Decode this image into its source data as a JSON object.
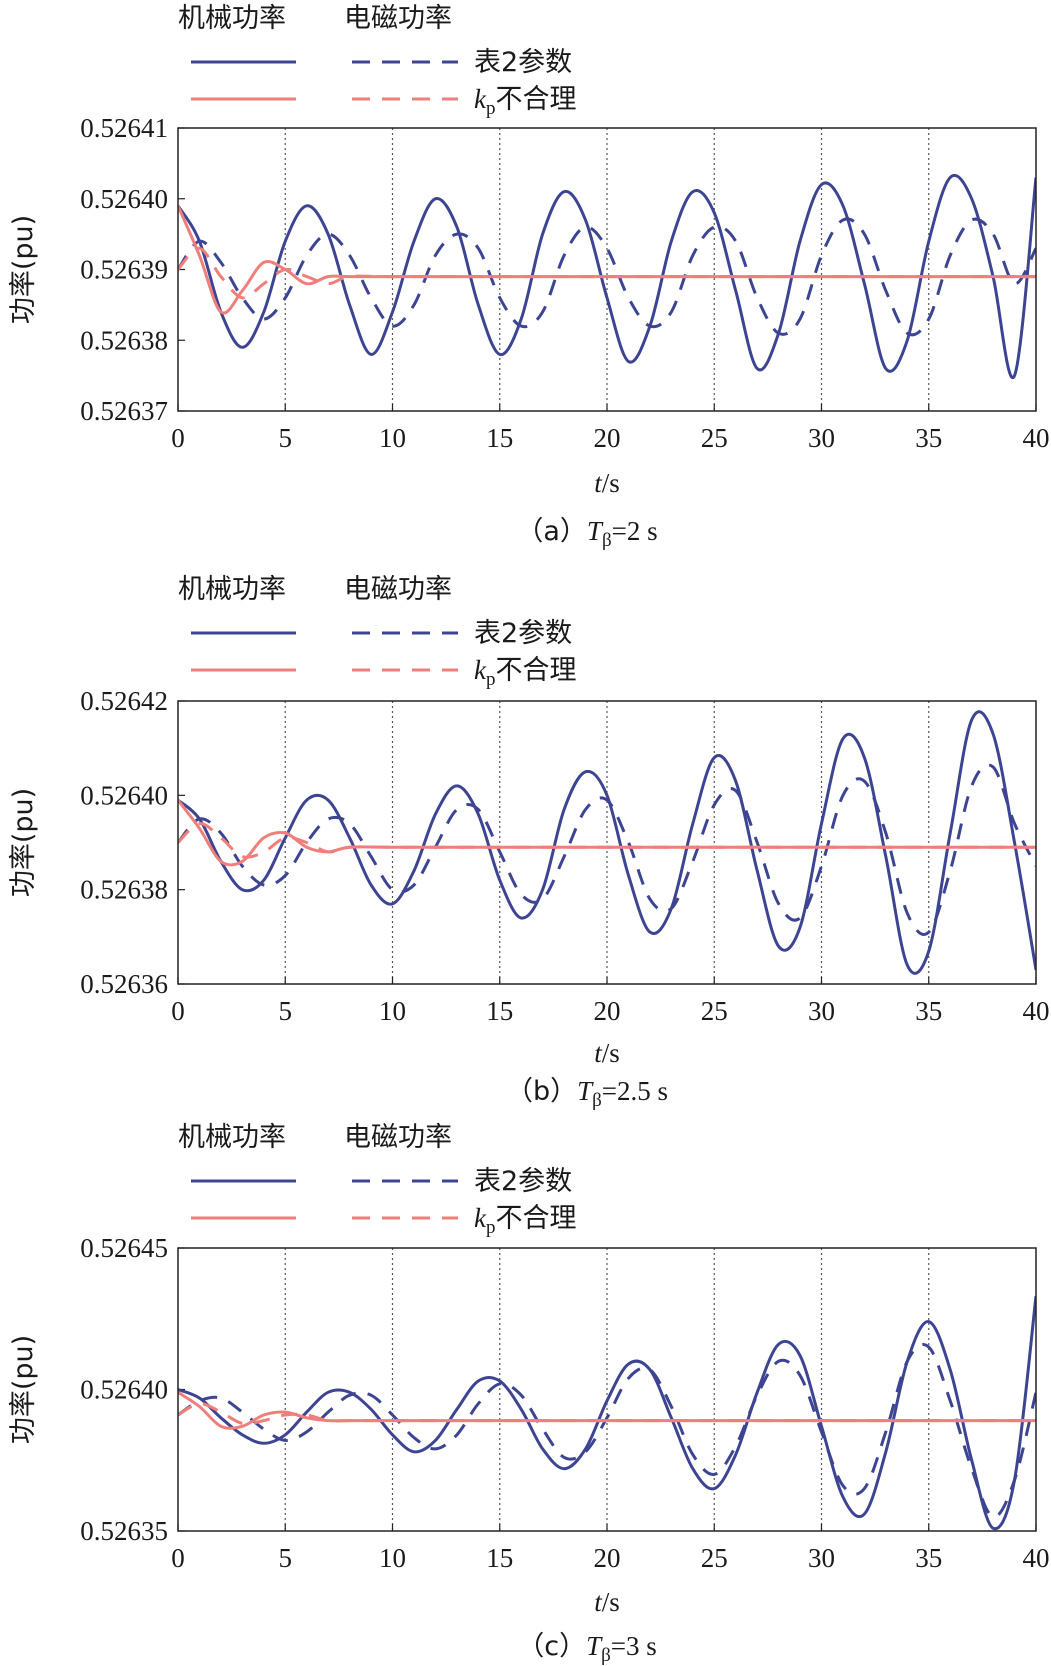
{
  "legend": {
    "col1_header": "机械功率",
    "col2_header": "电磁功率",
    "row1_label": "表2参数",
    "row2_label_k": "k",
    "row2_label_sub": "p",
    "row2_label_rest": "不合理"
  },
  "colors": {
    "table2": "#3d4592",
    "kp_bad": "#ef7f7a"
  },
  "panels": [
    {
      "caption_prefix": "（a）",
      "caption_T": "T",
      "caption_sub": "β",
      "caption_value": "=2 s",
      "xlabel_italic": "t",
      "xlabel_unit": "/s",
      "ylabel": "功率(pu)",
      "chart_data": {
        "type": "line",
        "xlim": [
          0,
          40
        ],
        "ylim": [
          0.52637,
          0.52641
        ],
        "x_ticks": [
          "0",
          "5",
          "10",
          "15",
          "20",
          "25",
          "30",
          "35",
          "40"
        ],
        "y_ticks": [
          "0.52637",
          "0.52638",
          "0.52639",
          "0.52640",
          "0.52641"
        ],
        "grid": "x-dotted",
        "series": [
          {
            "name": "机械功率 表2参数",
            "color": "table2",
            "dash": "solid",
            "x": [
              0,
              1,
              2,
              3,
              4,
              5,
              6,
              7,
              8,
              9,
              10,
              11,
              12,
              13,
              14,
              15,
              16,
              17,
              18,
              19,
              20,
              21,
              22,
              23,
              24,
              25,
              26,
              27,
              28,
              29,
              30,
              31,
              32,
              33,
              34,
              35,
              36,
              37,
              38,
              39,
              40
            ],
            "y": [
              0.526399,
              0.526394,
              0.526384,
              0.526379,
              0.526384,
              0.526394,
              0.526399,
              0.526395,
              0.526385,
              0.526378,
              0.526384,
              0.526394,
              0.5264,
              0.526396,
              0.526385,
              0.526378,
              0.526383,
              0.526395,
              0.526401,
              0.526397,
              0.526386,
              0.526377,
              0.526382,
              0.526394,
              0.526401,
              0.526398,
              0.526387,
              0.526376,
              0.526381,
              0.526394,
              0.526402,
              0.526399,
              0.526388,
              0.526376,
              0.52638,
              0.526394,
              0.526403,
              0.5264,
              0.526389,
              0.526375,
              0.526403
            ]
          },
          {
            "name": "电磁功率 表2参数",
            "color": "table2",
            "dash": "dashed",
            "x": [
              0,
              1,
              2,
              3,
              4,
              5,
              6,
              7,
              8,
              9,
              10,
              11,
              12,
              13,
              14,
              15,
              16,
              17,
              18,
              19,
              20,
              21,
              22,
              23,
              24,
              25,
              26,
              27,
              28,
              29,
              30,
              31,
              32,
              33,
              34,
              35,
              36,
              37,
              38,
              39,
              40
            ],
            "y": [
              0.52639,
              0.526394,
              0.526391,
              0.526386,
              0.526383,
              0.526386,
              0.526392,
              0.526395,
              0.526392,
              0.526386,
              0.526382,
              0.526385,
              0.526392,
              0.526395,
              0.526393,
              0.526386,
              0.526382,
              0.526384,
              0.526392,
              0.526396,
              0.526393,
              0.526386,
              0.526382,
              0.526384,
              0.526392,
              0.526396,
              0.526394,
              0.526386,
              0.526381,
              0.526383,
              0.526392,
              0.526397,
              0.526395,
              0.526387,
              0.526381,
              0.526383,
              0.526392,
              0.526397,
              0.526395,
              0.526388,
              0.526393
            ]
          },
          {
            "name": "机械功率 kp不合理",
            "color": "kp_bad",
            "dash": "solid",
            "x": [
              0,
              1,
              2,
              3,
              4,
              5,
              6,
              7,
              8,
              10,
              15,
              20,
              25,
              30,
              35,
              40
            ],
            "y": [
              0.526399,
              0.526392,
              0.526384,
              0.526387,
              0.526391,
              0.52639,
              0.526388,
              0.526389,
              0.526389,
              0.526389,
              0.526389,
              0.526389,
              0.526389,
              0.526389,
              0.526389,
              0.526389
            ]
          },
          {
            "name": "电磁功率 kp不合理",
            "color": "kp_bad",
            "dash": "dashed",
            "x": [
              0,
              1,
              2,
              3,
              4,
              5,
              6,
              7,
              8,
              10,
              15,
              20,
              25,
              30,
              35,
              40
            ],
            "y": [
              0.52639,
              0.526393,
              0.526389,
              0.526386,
              0.526388,
              0.52639,
              0.526389,
              0.526388,
              0.526389,
              0.526389,
              0.526389,
              0.526389,
              0.526389,
              0.526389,
              0.526389,
              0.526389
            ]
          }
        ]
      }
    },
    {
      "caption_prefix": "（b）",
      "caption_T": "T",
      "caption_sub": "β",
      "caption_value": "=2.5 s",
      "xlabel_italic": "t",
      "xlabel_unit": "/s",
      "ylabel": "功率(pu)",
      "chart_data": {
        "type": "line",
        "xlim": [
          0,
          40
        ],
        "ylim": [
          0.52636,
          0.52642
        ],
        "x_ticks": [
          "0",
          "5",
          "10",
          "15",
          "20",
          "25",
          "30",
          "35",
          "40"
        ],
        "y_ticks": [
          "0.52636",
          "0.52638",
          "0.52640",
          "0.52642"
        ],
        "grid": "x-dotted",
        "series": [
          {
            "name": "机械功率 表2参数",
            "color": "table2",
            "dash": "solid",
            "x": [
              0,
              1,
              2,
              3,
              4,
              5,
              6,
              7,
              8,
              9,
              10,
              11,
              12,
              13,
              14,
              15,
              16,
              17,
              18,
              19,
              20,
              21,
              22,
              23,
              24,
              25,
              26,
              27,
              28,
              29,
              30,
              31,
              32,
              33,
              34,
              35,
              36,
              37,
              38,
              39,
              40
            ],
            "y": [
              0.526399,
              0.526395,
              0.526386,
              0.52638,
              0.526382,
              0.526391,
              0.526399,
              0.526399,
              0.526391,
              0.526381,
              0.526377,
              0.526384,
              0.526396,
              0.526402,
              0.526396,
              0.526382,
              0.526374,
              0.52638,
              0.526397,
              0.526405,
              0.5264,
              0.526383,
              0.526371,
              0.526376,
              0.526394,
              0.526408,
              0.526403,
              0.526384,
              0.526368,
              0.526372,
              0.526394,
              0.526412,
              0.526408,
              0.526387,
              0.526364,
              0.526367,
              0.526392,
              0.526416,
              0.526413,
              0.52639,
              0.526363
            ]
          },
          {
            "name": "电磁功率 表2参数",
            "color": "table2",
            "dash": "dashed",
            "x": [
              0,
              1,
              2,
              3,
              4,
              5,
              6,
              7,
              8,
              9,
              10,
              11,
              12,
              13,
              14,
              15,
              16,
              17,
              18,
              19,
              20,
              21,
              22,
              23,
              24,
              25,
              26,
              27,
              28,
              29,
              30,
              31,
              32,
              33,
              34,
              35,
              36,
              37,
              38,
              39,
              40
            ],
            "y": [
              0.52639,
              0.526395,
              0.526392,
              0.526385,
              0.526381,
              0.526383,
              0.52639,
              0.526395,
              0.526394,
              0.526387,
              0.52638,
              0.526381,
              0.526389,
              0.526397,
              0.526397,
              0.526388,
              0.526379,
              0.526378,
              0.526387,
              0.526397,
              0.526399,
              0.52639,
              0.526378,
              0.526376,
              0.526386,
              0.526398,
              0.526401,
              0.52639,
              0.526377,
              0.526374,
              0.526385,
              0.5264,
              0.526403,
              0.526392,
              0.526375,
              0.526371,
              0.526384,
              0.526402,
              0.526406,
              0.526394,
              0.526385
            ]
          },
          {
            "name": "机械功率 kp不合理",
            "color": "kp_bad",
            "dash": "solid",
            "x": [
              0,
              1,
              2,
              3,
              4,
              5,
              6,
              7,
              8,
              10,
              15,
              20,
              25,
              30,
              35,
              40
            ],
            "y": [
              0.526399,
              0.526393,
              0.526386,
              0.526386,
              0.526391,
              0.526392,
              0.526389,
              0.526388,
              0.526389,
              0.526389,
              0.526389,
              0.526389,
              0.526389,
              0.526389,
              0.526389,
              0.526389
            ]
          },
          {
            "name": "电磁功率 kp不合理",
            "color": "kp_bad",
            "dash": "dashed",
            "x": [
              0,
              1,
              2,
              3,
              4,
              5,
              6,
              7,
              8,
              10,
              15,
              20,
              25,
              30,
              35,
              40
            ],
            "y": [
              0.52639,
              0.526394,
              0.526391,
              0.526387,
              0.526388,
              0.526391,
              0.52639,
              0.526388,
              0.526389,
              0.526389,
              0.526389,
              0.526389,
              0.526389,
              0.526389,
              0.526389,
              0.526389
            ]
          }
        ]
      }
    },
    {
      "caption_prefix": "（c）",
      "caption_T": "T",
      "caption_sub": "β",
      "caption_value": "=3 s",
      "xlabel_italic": "t",
      "xlabel_unit": "/s",
      "ylabel": "功率(pu)",
      "chart_data": {
        "type": "line",
        "xlim": [
          0,
          40
        ],
        "ylim": [
          0.52635,
          0.52645
        ],
        "x_ticks": [
          "0",
          "5",
          "10",
          "15",
          "20",
          "25",
          "30",
          "35",
          "40"
        ],
        "y_ticks": [
          "0.52635",
          "0.52640",
          "0.52645"
        ],
        "grid": "x-dotted",
        "series": [
          {
            "name": "机械功率 表2参数",
            "color": "table2",
            "dash": "solid",
            "x": [
              0,
              1,
              2,
              3,
              4,
              5,
              6,
              7,
              8,
              9,
              10,
              11,
              12,
              13,
              14,
              15,
              16,
              17,
              18,
              19,
              20,
              21,
              22,
              23,
              24,
              25,
              26,
              27,
              28,
              29,
              30,
              31,
              32,
              33,
              34,
              35,
              36,
              37,
              38,
              39,
              40
            ],
            "y": [
              0.5264,
              0.526397,
              0.52639,
              0.526384,
              0.526381,
              0.526384,
              0.526392,
              0.526399,
              0.526399,
              0.526393,
              0.526384,
              0.526378,
              0.526382,
              0.526393,
              0.526403,
              0.526403,
              0.526393,
              0.526379,
              0.526372,
              0.526379,
              0.526396,
              0.526409,
              0.526407,
              0.52639,
              0.526372,
              0.526365,
              0.526377,
              0.526399,
              0.526416,
              0.526412,
              0.526387,
              0.526362,
              0.526356,
              0.526378,
              0.52641,
              0.526424,
              0.526407,
              0.526375,
              0.526351,
              0.526368,
              0.526433
            ]
          },
          {
            "name": "电磁功率 表2参数",
            "color": "table2",
            "dash": "dashed",
            "x": [
              0,
              1,
              2,
              3,
              4,
              5,
              6,
              7,
              8,
              9,
              10,
              11,
              12,
              13,
              14,
              15,
              16,
              17,
              18,
              19,
              20,
              21,
              22,
              23,
              24,
              25,
              26,
              27,
              28,
              29,
              30,
              31,
              32,
              33,
              34,
              35,
              36,
              37,
              38,
              39,
              40
            ],
            "y": [
              0.526391,
              0.526396,
              0.526397,
              0.526392,
              0.526386,
              0.526382,
              0.526385,
              0.526392,
              0.526398,
              0.526398,
              0.526391,
              0.526383,
              0.526379,
              0.526384,
              0.526395,
              0.526402,
              0.526398,
              0.526386,
              0.526376,
              0.526378,
              0.52639,
              0.526404,
              0.526407,
              0.526394,
              0.526377,
              0.52637,
              0.52638,
              0.526398,
              0.52641,
              0.526405,
              0.526385,
              0.526366,
              0.526365,
              0.526385,
              0.52641,
              0.526415,
              0.526396,
              0.526372,
              0.526355,
              0.526368,
              0.526399
            ]
          },
          {
            "name": "机械功率 kp不合理",
            "color": "kp_bad",
            "dash": "solid",
            "x": [
              0,
              1,
              2,
              3,
              4,
              5,
              6,
              7,
              8,
              10,
              15,
              20,
              25,
              30,
              35,
              40
            ],
            "y": [
              0.526399,
              0.526394,
              0.526387,
              0.526387,
              0.526391,
              0.526392,
              0.52639,
              0.526389,
              0.526389,
              0.526389,
              0.526389,
              0.526389,
              0.526389,
              0.526389,
              0.526389,
              0.526389
            ]
          },
          {
            "name": "电磁功率 kp不合理",
            "color": "kp_bad",
            "dash": "dashed",
            "x": [
              0,
              1,
              2,
              3,
              4,
              5,
              6,
              7,
              8,
              10,
              15,
              20,
              25,
              30,
              35,
              40
            ],
            "y": [
              0.526391,
              0.526395,
              0.526392,
              0.526388,
              0.526389,
              0.526391,
              0.526391,
              0.526389,
              0.526389,
              0.526389,
              0.526389,
              0.526389,
              0.526389,
              0.526389,
              0.526389,
              0.526389
            ]
          }
        ]
      }
    }
  ]
}
